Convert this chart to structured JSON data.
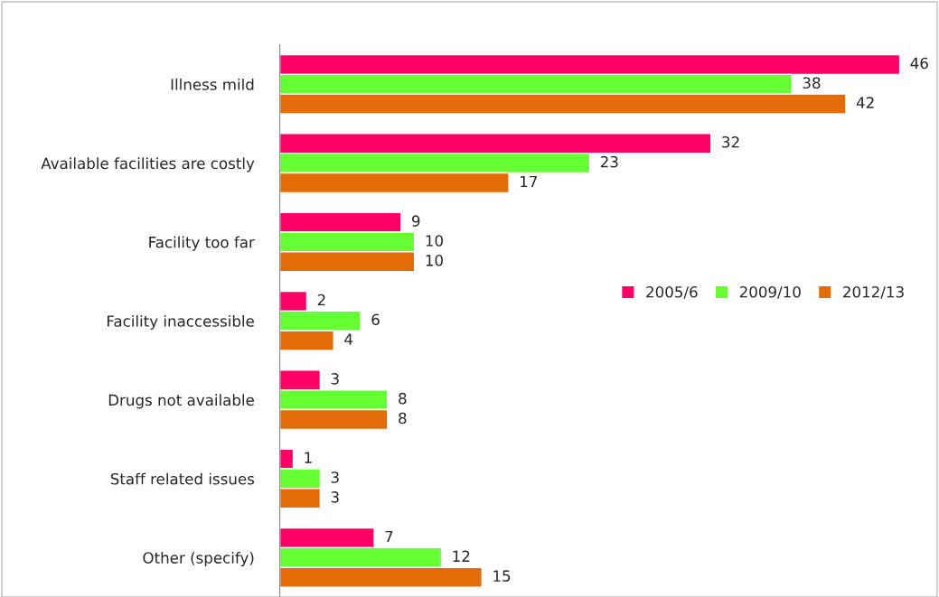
{
  "chart_data": {
    "type": "bar",
    "orientation": "horizontal",
    "data_labels": true,
    "legend": "right",
    "grid": false,
    "categories": [
      "Illness mild",
      "Available facilities are costly",
      "Facility too far",
      "Facility inaccessible",
      "Drugs not available",
      "Staff related issues",
      "Other (specify)"
    ],
    "series": [
      {
        "name": "2005/6",
        "color": "#ff0066",
        "values": [
          46,
          32,
          9,
          2,
          3,
          1,
          7
        ]
      },
      {
        "name": "2009/10",
        "color": "#66ff33",
        "values": [
          38,
          23,
          10,
          6,
          8,
          3,
          12
        ]
      },
      {
        "name": "2012/13",
        "color": "#e36c09",
        "values": [
          42,
          17,
          10,
          4,
          8,
          3,
          15
        ]
      }
    ]
  }
}
